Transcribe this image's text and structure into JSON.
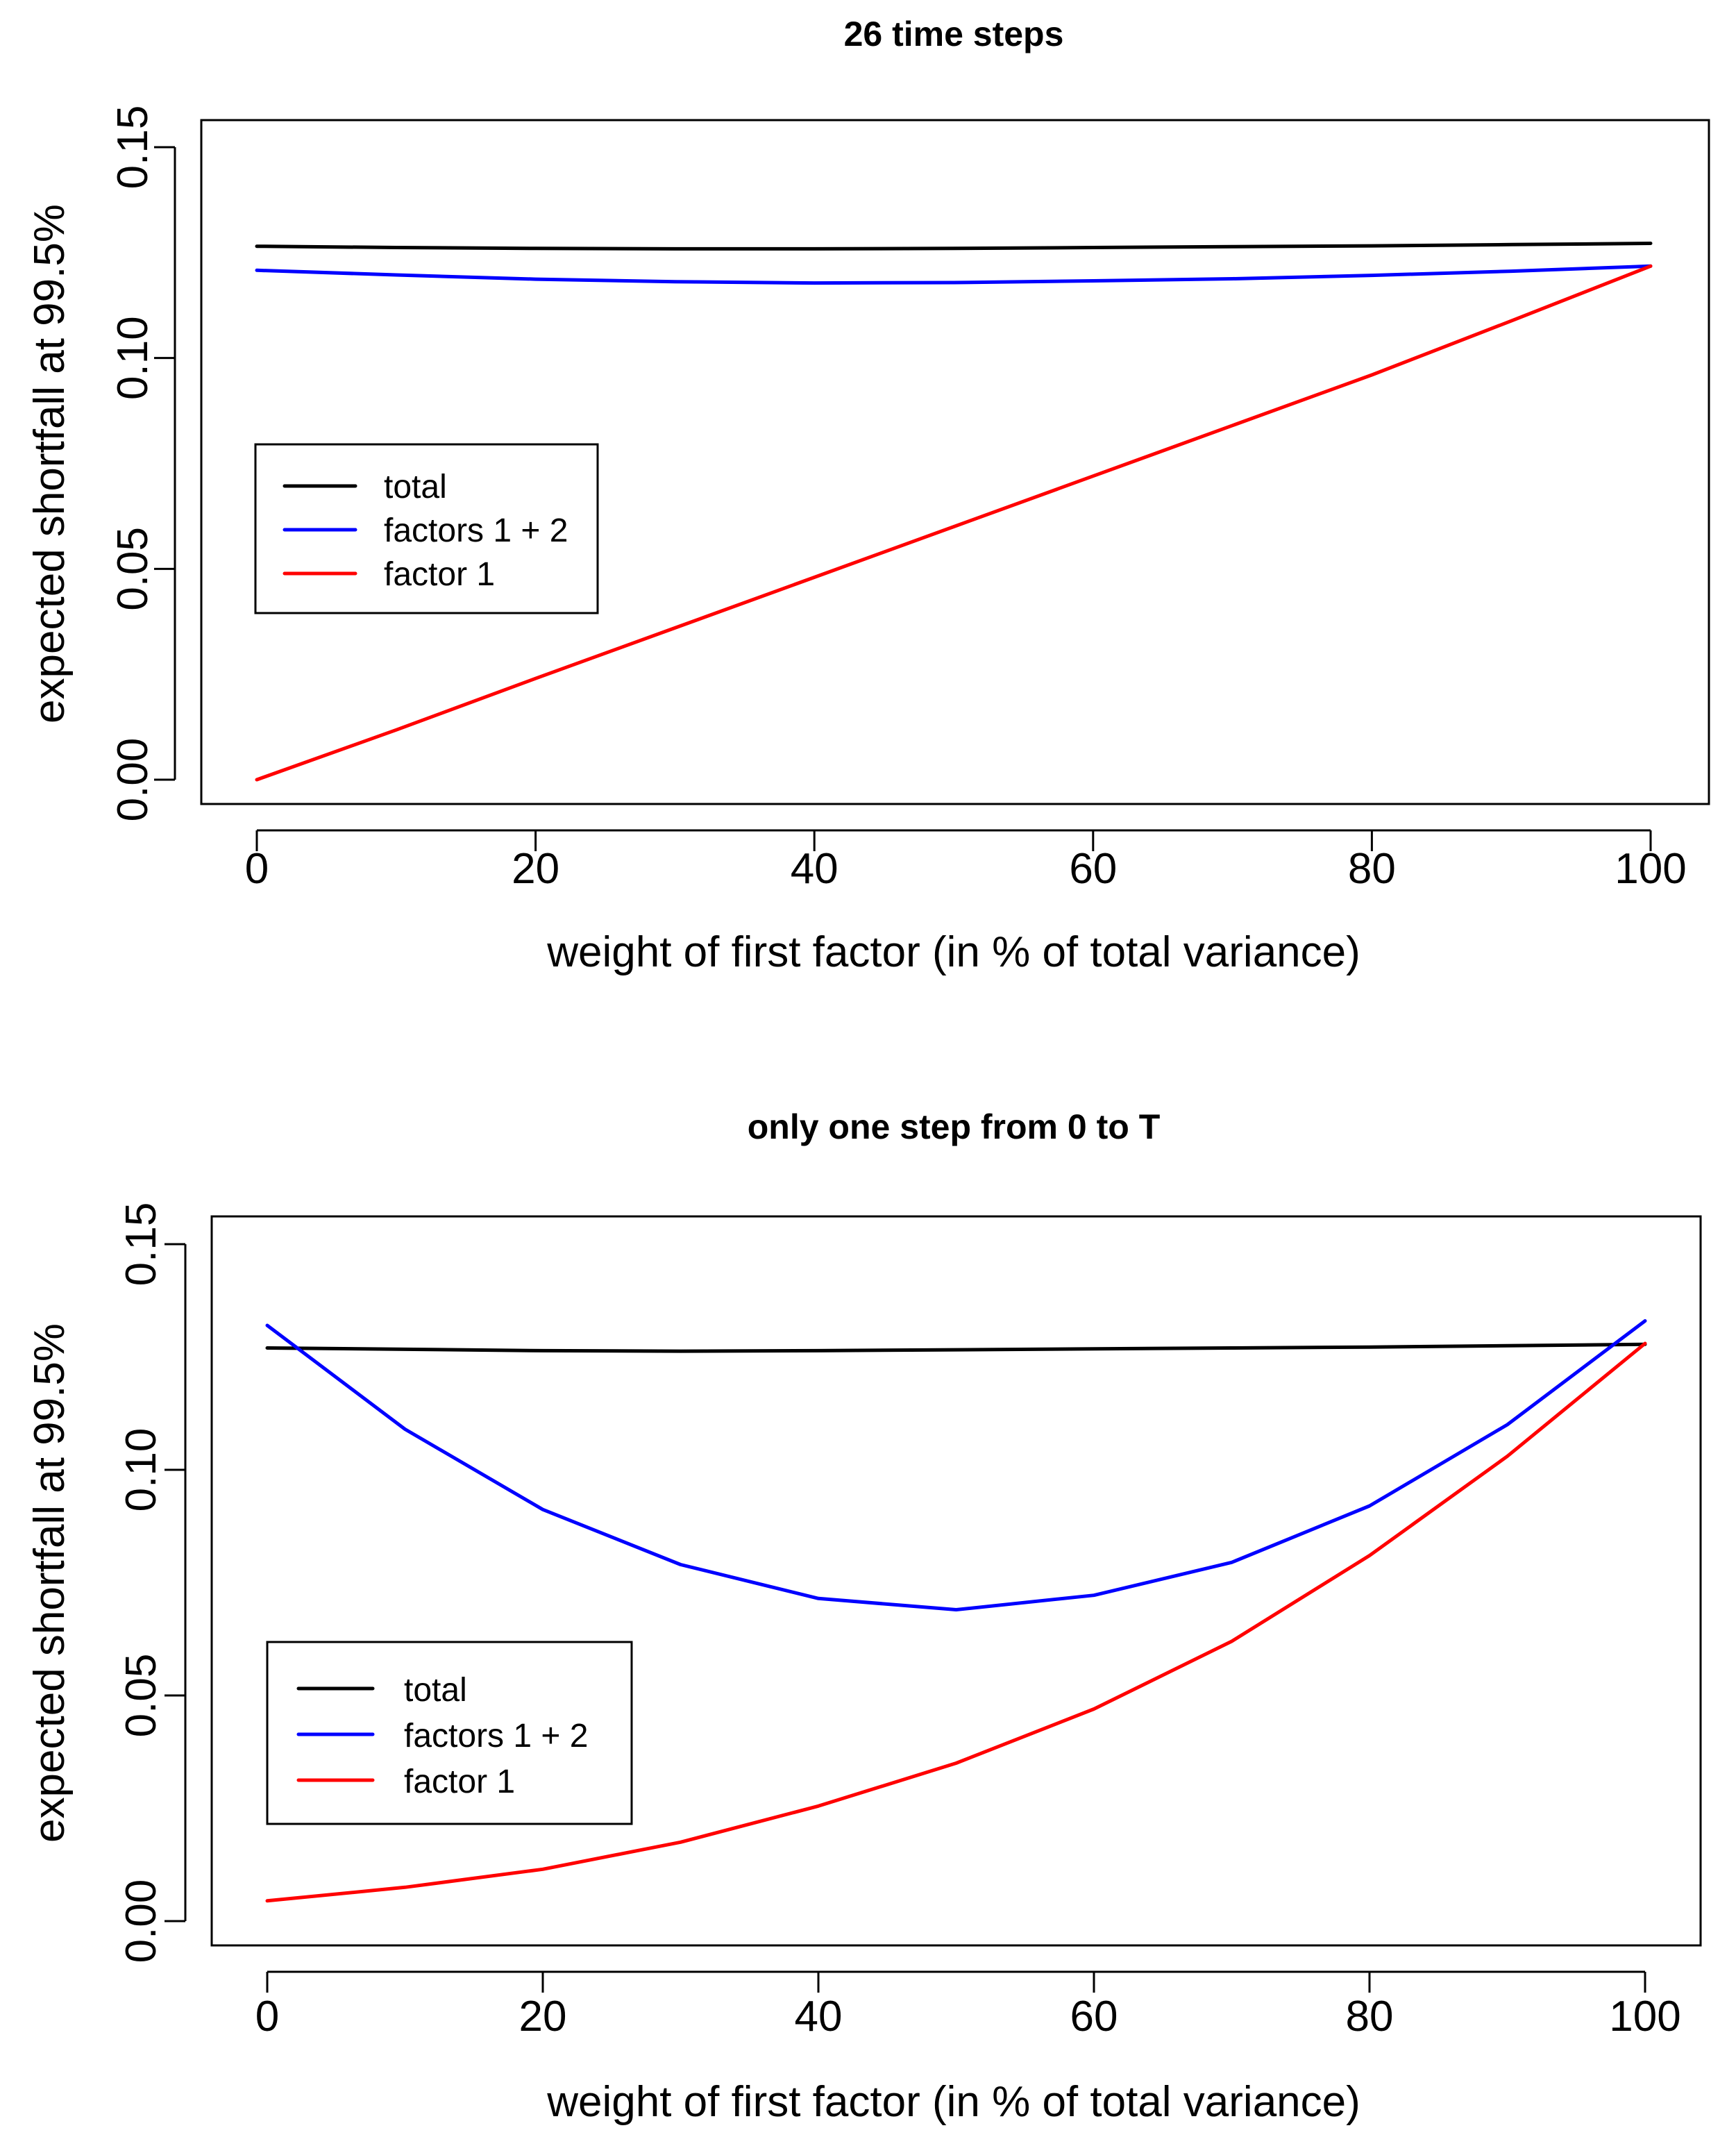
{
  "chart_data": [
    {
      "type": "line",
      "title": "26 time steps",
      "xlabel": "weight of first factor (in % of total variance)",
      "ylabel": "expected shortfall at 99.5%",
      "xlim": [
        0,
        100
      ],
      "ylim": [
        0,
        0.15
      ],
      "x": [
        0,
        10,
        20,
        30,
        40,
        50,
        60,
        70,
        80,
        90,
        100
      ],
      "xticks": [
        "0",
        "20",
        "40",
        "60",
        "80",
        "100"
      ],
      "yticks": [
        "0.00",
        "0.05",
        "0.10",
        "0.15"
      ],
      "series": [
        {
          "name": "total",
          "color": "#000000",
          "values": [
            0.1265,
            0.1262,
            0.126,
            0.1259,
            0.1259,
            0.126,
            0.1262,
            0.1264,
            0.1266,
            0.1269,
            0.1272
          ]
        },
        {
          "name": "factors 1 + 2",
          "color": "#0000ff",
          "values": [
            0.1208,
            0.1197,
            0.1187,
            0.1181,
            0.1178,
            0.1179,
            0.1183,
            0.1188,
            0.1196,
            0.1206,
            0.1218
          ]
        },
        {
          "name": "factor 1",
          "color": "#ff0000",
          "values": [
            0.0,
            0.0118,
            0.024,
            0.036,
            0.048,
            0.06,
            0.072,
            0.084,
            0.096,
            0.1088,
            0.1218
          ]
        }
      ],
      "legend": {
        "placement": "left",
        "entries": [
          "total",
          "factors 1 + 2",
          "factor 1"
        ]
      }
    },
    {
      "type": "line",
      "title": "only one step from 0 to T",
      "xlabel": "weight of first factor (in % of total variance)",
      "ylabel": "expected shortfall at 99.5%",
      "xlim": [
        0,
        100
      ],
      "ylim": [
        0,
        0.15
      ],
      "x": [
        0,
        10,
        20,
        30,
        40,
        50,
        60,
        70,
        80,
        90,
        100
      ],
      "xticks": [
        "0",
        "20",
        "40",
        "60",
        "80",
        "100"
      ],
      "yticks": [
        "0.00",
        "0.05",
        "0.10",
        "0.15"
      ],
      "series": [
        {
          "name": "total",
          "color": "#000000",
          "values": [
            0.127,
            0.1267,
            0.1264,
            0.1263,
            0.1264,
            0.1266,
            0.1268,
            0.127,
            0.1272,
            0.1275,
            0.1278
          ]
        },
        {
          "name": "factors 1 + 2",
          "color": "#0000ff",
          "values": [
            0.132,
            0.109,
            0.0912,
            0.079,
            0.0715,
            0.069,
            0.0722,
            0.0795,
            0.092,
            0.11,
            0.133
          ]
        },
        {
          "name": "factor 1",
          "color": "#ff0000",
          "values": [
            0.0045,
            0.0075,
            0.0115,
            0.0175,
            0.0255,
            0.035,
            0.047,
            0.062,
            0.081,
            0.103,
            0.128
          ]
        }
      ],
      "legend": {
        "placement": "lower-left",
        "entries": [
          "total",
          "factors 1 + 2",
          "factor 1"
        ]
      }
    }
  ]
}
